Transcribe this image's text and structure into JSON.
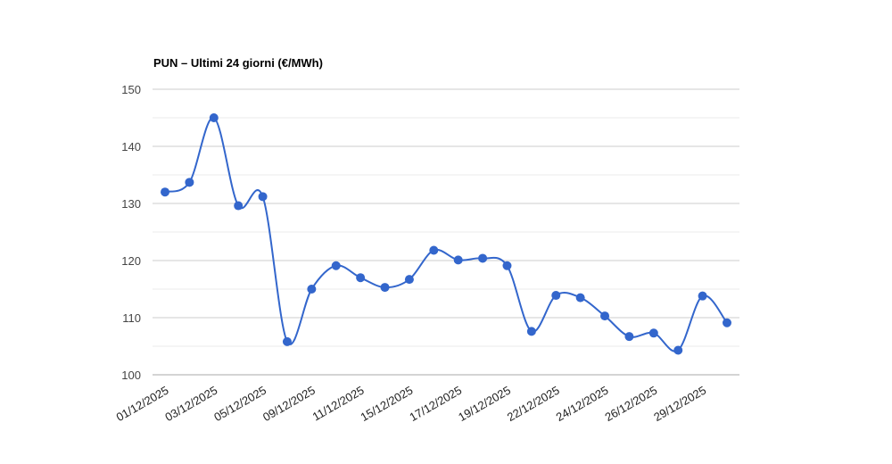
{
  "chart_data": {
    "type": "line",
    "title": "PUN – Ultimi 24 giorni (€/MWh)",
    "xlabel": "",
    "ylabel": "",
    "ylim": [
      100,
      150
    ],
    "y_ticks": [
      "150",
      "140",
      "130",
      "120",
      "110",
      "100"
    ],
    "x_tick_labels": [
      "01/12/2025",
      "03/12/2025",
      "05/12/2025",
      "09/12/2025",
      "11/12/2025",
      "15/12/2025",
      "17/12/2025",
      "19/12/2025",
      "22/12/2025",
      "24/12/2025",
      "26/12/2025",
      "29/12/2025"
    ],
    "grid": true,
    "legend": "none",
    "line_color": "#3366cc",
    "series": [
      {
        "values": [
          132.0,
          133.7,
          145.0,
          129.6,
          131.2,
          105.8,
          115.0,
          119.1,
          117.0,
          115.3,
          116.7,
          121.8,
          120.1,
          120.4,
          119.1,
          107.6,
          113.9,
          113.5,
          110.3,
          106.7,
          107.3,
          104.3,
          113.8,
          109.1
        ]
      }
    ]
  }
}
